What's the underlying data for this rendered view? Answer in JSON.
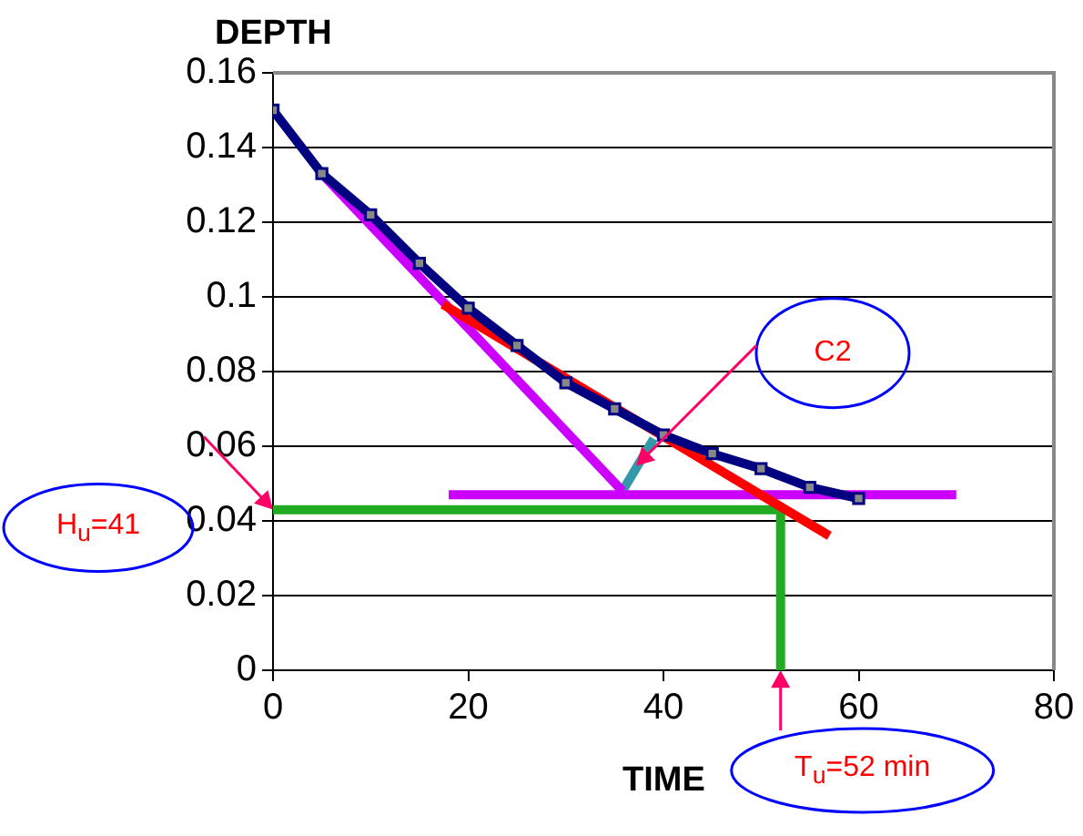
{
  "chart_data": {
    "type": "line",
    "xlabel": "TIME",
    "ylabel": "DEPTH",
    "xlim": [
      0,
      80
    ],
    "xticks": [
      0,
      20,
      40,
      60,
      80
    ],
    "ylim": [
      0,
      0.16
    ],
    "yticks": [
      0,
      0.02,
      0.04,
      0.06,
      0.08,
      0.1,
      0.12,
      0.14,
      0.16
    ],
    "grid": "y",
    "legend": false,
    "line_style": "solid",
    "series": [
      {
        "type": "line",
        "color": "#000080",
        "marker": "square",
        "x": [
          0,
          5,
          10,
          15,
          20,
          25,
          30,
          35,
          40,
          45,
          50,
          55,
          60
        ],
        "values": [
          0.15,
          0.133,
          0.122,
          0.109,
          0.097,
          0.087,
          0.077,
          0.07,
          0.063,
          0.058,
          0.054,
          0.049,
          0.046
        ]
      },
      {
        "type": "line",
        "color": "#ff0000",
        "marker": "none",
        "x": [
          17.4,
          57
        ],
        "values": [
          0.098,
          0.036
        ]
      },
      {
        "type": "line",
        "color": "#cc00ff",
        "marker": "none",
        "x": [
          5,
          35.8
        ],
        "values": [
          0.133,
          0.048
        ]
      },
      {
        "type": "line",
        "color": "#cc00ff",
        "marker": "none",
        "x": [
          18,
          70
        ],
        "values": [
          0.047,
          0.047
        ]
      },
      {
        "type": "line",
        "color": "#3399aa",
        "marker": "none",
        "x": [
          35.8,
          39
        ],
        "values": [
          0.048,
          0.062
        ]
      },
      {
        "type": "line",
        "color": "#22aa22",
        "marker": "none",
        "x": [
          0,
          52,
          52
        ],
        "values": [
          0.043,
          0.043,
          0
        ]
      }
    ],
    "annotations": [
      "C2",
      "H$_{u}$=41",
      "T$_{u}$=52 min"
    ]
  }
}
